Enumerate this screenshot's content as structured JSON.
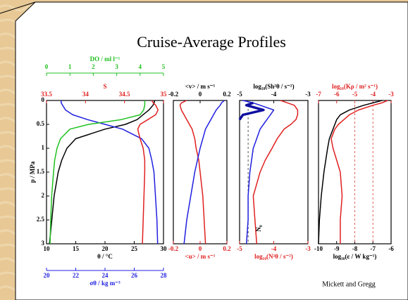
{
  "title": "Cruise-Average Profiles",
  "credit": "Mickett and Gregg",
  "chart_data": [
    {
      "type": "line",
      "ylabel": "p / MPa",
      "ylim": [
        0,
        3
      ],
      "yticks": [
        0,
        0.5,
        1,
        1.5,
        2,
        2.5,
        3
      ],
      "y_reversed": true,
      "axes": [
        {
          "label": "θ / °C",
          "color": "#000000",
          "side": "bottom",
          "lim": [
            10,
            30
          ],
          "ticks": [
            10,
            15,
            20,
            25,
            30
          ]
        },
        {
          "label": "σθ / kg m⁻³",
          "color": "#2020e0",
          "side": "bottom",
          "lim": [
            20,
            28
          ],
          "ticks": [
            20,
            22,
            24,
            26,
            28
          ]
        },
        {
          "label": "S",
          "color": "#e02020",
          "side": "top",
          "lim": [
            33.5,
            35
          ],
          "ticks": [
            33.5,
            34,
            34.5,
            35
          ]
        },
        {
          "label": "DO / ml l⁻¹",
          "color": "#20c020",
          "side": "top",
          "lim": [
            0,
            5
          ],
          "ticks": [
            0,
            1,
            2,
            3,
            4,
            5
          ]
        }
      ],
      "y": [
        0,
        0.05,
        0.1,
        0.2,
        0.3,
        0.4,
        0.5,
        0.6,
        0.8,
        1,
        1.25,
        1.5,
        2,
        2.5,
        3
      ],
      "series": [
        {
          "color": "#000000",
          "axis": 0,
          "values": [
            28.5,
            28.4,
            28.2,
            27.5,
            26.5,
            25.5,
            23.5,
            20,
            15,
            13.5,
            12.6,
            12,
            11.3,
            10.9,
            10.5
          ]
        },
        {
          "color": "#2020e0",
          "axis": 1,
          "values": [
            21.0,
            21.0,
            21.1,
            21.3,
            21.8,
            22.8,
            24.0,
            25.2,
            26.5,
            27.0,
            27.2,
            27.35,
            27.45,
            27.55,
            27.6
          ]
        },
        {
          "color": "#e02020",
          "axis": 2,
          "values": [
            34.85,
            34.87,
            34.9,
            34.93,
            34.9,
            34.8,
            34.7,
            34.67,
            34.7,
            34.74,
            34.76,
            34.76,
            34.75,
            34.74,
            34.73
          ]
        },
        {
          "color": "#20c020",
          "axis": 3,
          "values": [
            4.2,
            4.2,
            4.2,
            4.15,
            4.0,
            3.2,
            1.8,
            1.0,
            0.6,
            0.45,
            0.35,
            0.3,
            0.22,
            0.18,
            0.15
          ]
        }
      ]
    },
    {
      "type": "line",
      "ylim": [
        0,
        3
      ],
      "y_reversed": true,
      "axes": [
        {
          "label": "<u> / m s⁻¹",
          "color": "#e02020",
          "side": "bottom",
          "lim": [
            -0.2,
            0.2
          ],
          "ticks": [
            -0.2,
            0,
            0.2
          ]
        },
        {
          "label": "<v> / m s⁻¹",
          "color": "#000000",
          "side": "top",
          "lim": [
            -0.2,
            0.2
          ],
          "ticks": [
            -0.2,
            0,
            0.2
          ]
        }
      ],
      "y": [
        0,
        0.05,
        0.1,
        0.2,
        0.3,
        0.4,
        0.5,
        0.6,
        0.8,
        1,
        1.25,
        1.5,
        2,
        2.5,
        3
      ],
      "series": [
        {
          "color": "#e02020",
          "axis": 0,
          "values": [
            -0.1,
            -0.14,
            -0.15,
            -0.14,
            -0.12,
            -0.1,
            -0.08,
            -0.06,
            -0.04,
            -0.03,
            -0.01,
            0.0,
            0.02,
            0.03,
            0.04
          ]
        },
        {
          "color": "#2020e0",
          "axis": 1,
          "values": [
            0.18,
            0.16,
            0.15,
            0.12,
            0.1,
            0.08,
            0.06,
            0.04,
            0.02,
            0.0,
            -0.02,
            -0.04,
            -0.07,
            -0.1,
            -0.12
          ]
        }
      ]
    },
    {
      "type": "line",
      "ylim": [
        0,
        3
      ],
      "y_reversed": true,
      "annotation": "N₀",
      "axes": [
        {
          "label": "log₁₀(N²θ / s⁻²)",
          "color": "#e02020",
          "side": "bottom",
          "lim": [
            -5,
            -3
          ],
          "ticks": [
            -5,
            -4,
            -3
          ]
        },
        {
          "label": "log₁₀(Sh²θ / s⁻²)",
          "color": "#000000",
          "side": "top",
          "lim": [
            -5,
            -3
          ],
          "ticks": [
            -5,
            -4,
            -3
          ]
        }
      ],
      "reference_lines": [
        {
          "axis": 0,
          "value": -4.75,
          "color": "#555555"
        }
      ],
      "y": [
        0,
        0.05,
        0.1,
        0.2,
        0.3,
        0.4,
        0.5,
        0.6,
        0.8,
        1,
        1.25,
        1.5,
        2,
        2.5,
        3
      ],
      "series": [
        {
          "color": "#e02020",
          "axis": 0,
          "width": 1.5,
          "values": [
            -3.8,
            -3.6,
            -3.4,
            -3.3,
            -3.3,
            -3.35,
            -3.5,
            -3.7,
            -3.9,
            -4.05,
            -4.25,
            -4.4,
            -4.6,
            -4.55,
            -4.5
          ]
        },
        {
          "color": "#2020e0",
          "axis": 1,
          "width": 1.5,
          "values": [
            -4.9,
            -4.6,
            -4.4,
            -4.0,
            -4.1,
            -4.2,
            -4.3,
            -4.4,
            -4.5,
            -4.6,
            -4.65,
            -4.7,
            -4.75,
            -4.75,
            -4.8
          ]
        },
        {
          "color": "#1010a0",
          "axis": 1,
          "width": 3.5,
          "values": [
            null,
            -4.6,
            -4.8,
            -4.3,
            -4.9,
            -5,
            null,
            null,
            null,
            null,
            null,
            null,
            null,
            null,
            null
          ]
        }
      ]
    },
    {
      "type": "line",
      "ylim": [
        0,
        3
      ],
      "y_reversed": true,
      "axes": [
        {
          "label": "log₁₀(ε / W kg⁻¹)",
          "color": "#000000",
          "side": "bottom",
          "lim": [
            -10,
            -6
          ],
          "ticks": [
            -10,
            -9,
            -8,
            -7,
            -6
          ]
        },
        {
          "label": "log₁₀(Kρ / m² s⁻¹)",
          "color": "#e02020",
          "side": "top",
          "lim": [
            -7,
            -3
          ],
          "ticks": [
            -7,
            -6,
            -5,
            -4,
            -3
          ]
        }
      ],
      "reference_lines": [
        {
          "axis": 0,
          "value": -8,
          "color": "#e06060"
        },
        {
          "axis": 0,
          "value": -7,
          "color": "#e06060"
        }
      ],
      "y": [
        0,
        0.05,
        0.1,
        0.2,
        0.3,
        0.4,
        0.5,
        0.6,
        0.8,
        1,
        1.25,
        1.5,
        2,
        2.5,
        3
      ],
      "series": [
        {
          "color": "#000000",
          "axis": 0,
          "width": 1.5,
          "values": [
            -6.5,
            -7,
            -7.5,
            -8.3,
            -8.8,
            -9.0,
            -9.1,
            -9.2,
            -9.4,
            -9.5,
            -9.6,
            -9.7,
            -9.85,
            -9.95,
            -10
          ]
        },
        {
          "color": "#e02020",
          "axis": 1,
          "width": 1.5,
          "values": [
            -3.2,
            -3.5,
            -4,
            -4.8,
            -5.3,
            -5.6,
            -5.9,
            -6.1,
            -6.3,
            -6.2,
            -6.0,
            -5.8,
            -5.7,
            -5.8,
            -5.8
          ]
        }
      ]
    }
  ]
}
